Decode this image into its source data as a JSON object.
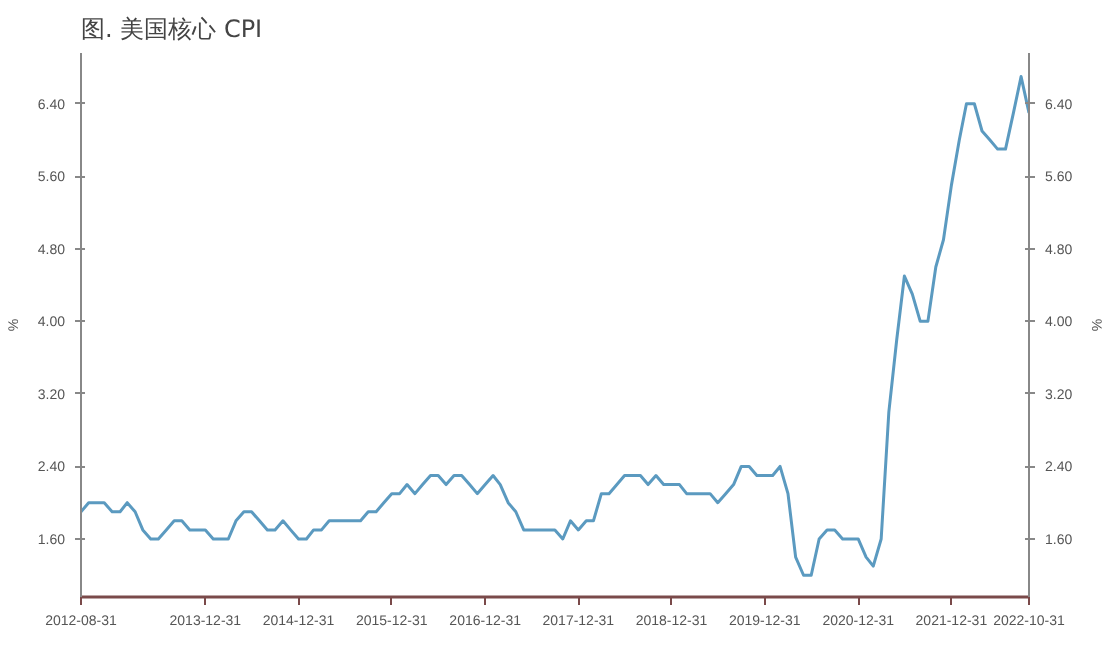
{
  "chart_data": {
    "type": "line",
    "title": "图. 美国核心 CPI",
    "ylabel": "%",
    "y2label": "%",
    "x": [
      "2012-08-31",
      "2012-09-30",
      "2012-10-31",
      "2012-11-30",
      "2012-12-31",
      "2013-01-31",
      "2013-02-28",
      "2013-03-31",
      "2013-04-30",
      "2013-05-31",
      "2013-06-30",
      "2013-07-31",
      "2013-08-31",
      "2013-09-30",
      "2013-10-31",
      "2013-11-30",
      "2013-12-31",
      "2014-01-31",
      "2014-02-28",
      "2014-03-31",
      "2014-04-30",
      "2014-05-31",
      "2014-06-30",
      "2014-07-31",
      "2014-08-31",
      "2014-09-30",
      "2014-10-31",
      "2014-11-30",
      "2014-12-31",
      "2015-01-31",
      "2015-02-28",
      "2015-03-31",
      "2015-04-30",
      "2015-05-31",
      "2015-06-30",
      "2015-07-31",
      "2015-08-31",
      "2015-09-30",
      "2015-10-31",
      "2015-11-30",
      "2015-12-31",
      "2016-01-31",
      "2016-02-29",
      "2016-03-31",
      "2016-04-30",
      "2016-05-31",
      "2016-06-30",
      "2016-07-31",
      "2016-08-31",
      "2016-09-30",
      "2016-10-31",
      "2016-11-30",
      "2016-12-31",
      "2017-01-31",
      "2017-02-28",
      "2017-03-31",
      "2017-04-30",
      "2017-05-31",
      "2017-06-30",
      "2017-07-31",
      "2017-08-31",
      "2017-09-30",
      "2017-10-31",
      "2017-11-30",
      "2017-12-31",
      "2018-01-31",
      "2018-02-28",
      "2018-03-31",
      "2018-04-30",
      "2018-05-31",
      "2018-06-30",
      "2018-07-31",
      "2018-08-31",
      "2018-09-30",
      "2018-10-31",
      "2018-11-30",
      "2018-12-31",
      "2019-01-31",
      "2019-02-28",
      "2019-03-31",
      "2019-04-30",
      "2019-05-31",
      "2019-06-30",
      "2019-07-31",
      "2019-08-31",
      "2019-09-30",
      "2019-10-31",
      "2019-11-30",
      "2019-12-31",
      "2020-01-31",
      "2020-02-29",
      "2020-03-31",
      "2020-04-30",
      "2020-05-31",
      "2020-06-30",
      "2020-07-31",
      "2020-08-31",
      "2020-09-30",
      "2020-10-31",
      "2020-11-30",
      "2020-12-31",
      "2021-01-31",
      "2021-02-28",
      "2021-03-31",
      "2021-04-30",
      "2021-05-31",
      "2021-06-30",
      "2021-07-31",
      "2021-08-31",
      "2021-09-30",
      "2021-10-31",
      "2021-11-30",
      "2021-12-31",
      "2022-01-31",
      "2022-02-28",
      "2022-03-31",
      "2022-04-30",
      "2022-05-31",
      "2022-06-30",
      "2022-07-31",
      "2022-08-31",
      "2022-09-30",
      "2022-10-31"
    ],
    "series": [
      {
        "color": "#5b9ac0",
        "values": [
          1.9,
          2.0,
          2.0,
          2.0,
          1.9,
          1.9,
          2.0,
          1.9,
          1.7,
          1.6,
          1.6,
          1.7,
          1.8,
          1.8,
          1.7,
          1.7,
          1.7,
          1.6,
          1.6,
          1.6,
          1.8,
          1.9,
          1.9,
          1.8,
          1.7,
          1.7,
          1.8,
          1.7,
          1.6,
          1.6,
          1.7,
          1.7,
          1.8,
          1.8,
          1.8,
          1.8,
          1.8,
          1.9,
          1.9,
          2.0,
          2.1,
          2.1,
          2.2,
          2.1,
          2.2,
          2.3,
          2.3,
          2.2,
          2.3,
          2.3,
          2.2,
          2.1,
          2.2,
          2.3,
          2.2,
          2.0,
          1.9,
          1.7,
          1.7,
          1.7,
          1.7,
          1.7,
          1.6,
          1.8,
          1.7,
          1.8,
          1.8,
          2.1,
          2.1,
          2.2,
          2.3,
          2.3,
          2.3,
          2.2,
          2.3,
          2.2,
          2.2,
          2.2,
          2.1,
          2.1,
          2.1,
          2.1,
          2.0,
          2.1,
          2.2,
          2.4,
          2.4,
          2.3,
          2.3,
          2.3,
          2.4,
          2.1,
          1.4,
          1.2,
          1.2,
          1.6,
          1.7,
          1.7,
          1.6,
          1.6,
          1.6,
          1.4,
          1.3,
          1.6,
          3.0,
          3.8,
          4.5,
          4.3,
          4.0,
          4.0,
          4.6,
          4.9,
          5.5,
          6.0,
          6.4,
          6.4,
          6.1,
          6.0,
          5.9,
          5.9,
          6.3,
          6.7,
          6.3
        ]
      }
    ],
    "xlim": [
      "2012-08-31",
      "2022-10-31"
    ],
    "xticks": [
      "2012-08-31",
      "2013-12-31",
      "2014-12-31",
      "2015-12-31",
      "2016-12-31",
      "2017-12-31",
      "2018-12-31",
      "2019-12-31",
      "2020-12-31",
      "2021-12-31",
      "2022-10-31"
    ],
    "ylim": [
      0.96,
      6.96
    ],
    "yticks": [
      {
        "value": 1.6,
        "label": "1.60"
      },
      {
        "value": 2.4,
        "label": "2.40"
      },
      {
        "value": 3.2,
        "label": "3.20"
      },
      {
        "value": 4.0,
        "label": "4.00"
      },
      {
        "value": 4.8,
        "label": "4.80"
      },
      {
        "value": 5.6,
        "label": "5.60"
      },
      {
        "value": 6.4,
        "label": "6.40"
      }
    ],
    "y2lim": [
      0.96,
      6.96
    ],
    "y2ticks": [
      {
        "value": 1.6,
        "label": "1.60"
      },
      {
        "value": 2.4,
        "label": "2.40"
      },
      {
        "value": 3.2,
        "label": "3.20"
      },
      {
        "value": 4.0,
        "label": "4.00"
      },
      {
        "value": 4.8,
        "label": "4.80"
      },
      {
        "value": 5.6,
        "label": "5.60"
      },
      {
        "value": 6.4,
        "label": "6.40"
      }
    ],
    "grid": false,
    "marker": "none",
    "line_style": "solid"
  }
}
